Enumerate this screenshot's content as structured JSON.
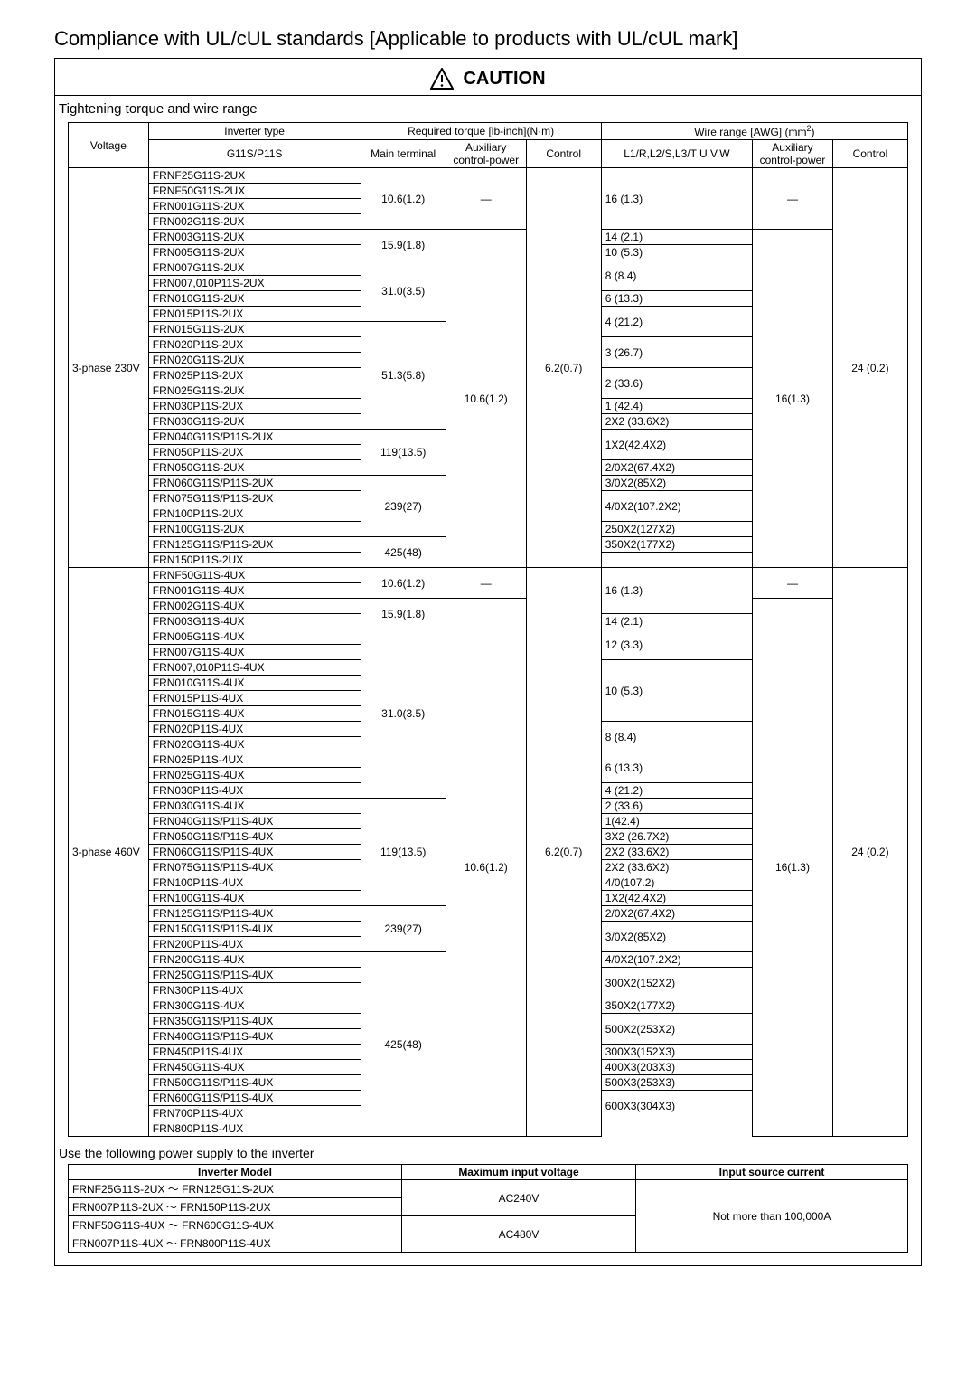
{
  "title": "Compliance with UL/cUL standards [Applicable to products with UL/cUL mark]",
  "caution": "CAUTION",
  "subheading": "Tightening torque and wire range",
  "headers": {
    "voltage": "Voltage",
    "invtype": "Inverter type",
    "g11s": "G11S/P11S",
    "reqtorque": "Required torque [lb-inch](N·m)",
    "wirerange_html": "Wire range [AWG] (mm<sup>2</sup>)",
    "main_term": "Main terminal",
    "aux_power": "Auxiliary control-power",
    "control": "Control",
    "l1r": "L1/R,L2/S,L3/T U,V,W"
  },
  "dash": "—",
  "v230_label": "3-phase 230V",
  "v460_label": "3-phase 460V",
  "torque_t1": "10.6(1.2)",
  "torque_t2": "15.9(1.8)",
  "torque_t3": "31.0(3.5)",
  "torque_t4": "51.3(5.8)",
  "torque_t5": "119(13.5)",
  "torque_t6": "239(27)",
  "torque_t7": "425(48)",
  "aux_power_230": "10.6(1.2)",
  "control_230": "6.2(0.7)",
  "aux_wire_230": "16(1.3)",
  "ctrl_wire_230": "24 (0.2)",
  "aux_power_460": "10.6(1.2)",
  "control_460": "6.2(0.7)",
  "aux_wire_460": "16(1.3)",
  "ctrl_wire_460": "24 (0.2)",
  "r230": [
    [
      "FRNF25G11S-2UX",
      "",
      "16 (1.3)",
      4
    ],
    [
      "FRNF50G11S-2UX",
      "",
      ""
    ],
    [
      "FRN001G11S-2UX",
      "",
      ""
    ],
    [
      "FRN002G11S-2UX",
      "",
      ""
    ],
    [
      "FRN003G11S-2UX",
      "",
      "14 (2.1)",
      1
    ],
    [
      "FRN005G11S-2UX",
      "",
      "10 (5.3)",
      1
    ],
    [
      "FRN007G11S-2UX",
      "",
      "8 (8.4)",
      2
    ],
    [
      "FRN007,010P11S-2UX",
      "",
      ""
    ],
    [
      "FRN010G11S-2UX",
      "",
      "6 (13.3)",
      1
    ],
    [
      "FRN015P11S-2UX",
      "",
      "4 (21.2)",
      2
    ],
    [
      "FRN015G11S-2UX",
      "",
      ""
    ],
    [
      "FRN020P11S-2UX",
      "",
      "3 (26.7)",
      2
    ],
    [
      "FRN020G11S-2UX",
      "",
      ""
    ],
    [
      "FRN025P11S-2UX",
      "",
      "2 (33.6)",
      2
    ],
    [
      "FRN025G11S-2UX",
      "",
      ""
    ],
    [
      "FRN030P11S-2UX",
      "",
      "1 (42.4)",
      1
    ],
    [
      "FRN030G11S-2UX",
      "",
      "2X2 (33.6X2)",
      1
    ],
    [
      "FRN040G11S/P11S-2UX",
      "",
      "1X2(42.4X2)",
      2
    ],
    [
      "FRN050P11S-2UX",
      "",
      ""
    ],
    [
      "FRN050G11S-2UX",
      "",
      "2/0X2(67.4X2)",
      1
    ],
    [
      "FRN060G11S/P11S-2UX",
      "",
      "3/0X2(85X2)",
      1
    ],
    [
      "FRN075G11S/P11S-2UX",
      "",
      "4/0X2(107.2X2)",
      2
    ],
    [
      "FRN100P11S-2UX",
      "",
      ""
    ],
    [
      "FRN100G11S-2UX",
      "",
      "250X2(127X2)",
      1
    ],
    [
      "FRN125G11S/P11S-2UX",
      "",
      "350X2(177X2)",
      1
    ],
    [
      "FRN150P11S-2UX",
      "",
      "",
      0
    ]
  ],
  "r460": [
    [
      "FRNF50G11S-4UX",
      "",
      "16 (1.3)",
      3
    ],
    [
      "FRN001G11S-4UX",
      "",
      ""
    ],
    [
      "FRN002G11S-4UX",
      "",
      ""
    ],
    [
      "FRN003G11S-4UX",
      "",
      "14 (2.1)",
      1
    ],
    [
      "FRN005G11S-4UX",
      "",
      "12 (3.3)",
      2
    ],
    [
      "FRN007G11S-4UX",
      "",
      ""
    ],
    [
      "FRN007,010P11S-4UX",
      "",
      "10 (5.3)",
      4
    ],
    [
      "FRN010G11S-4UX",
      "",
      ""
    ],
    [
      "FRN015P11S-4UX",
      "",
      ""
    ],
    [
      "FRN015G11S-4UX",
      "",
      ""
    ],
    [
      "FRN020P11S-4UX",
      "",
      "8 (8.4)",
      2
    ],
    [
      "FRN020G11S-4UX",
      "",
      ""
    ],
    [
      "FRN025P11S-4UX",
      "",
      "6 (13.3)",
      2
    ],
    [
      "FRN025G11S-4UX",
      "",
      ""
    ],
    [
      "FRN030P11S-4UX",
      "",
      "4 (21.2)",
      1
    ],
    [
      "FRN030G11S-4UX",
      "",
      "2 (33.6)",
      1
    ],
    [
      "FRN040G11S/P11S-4UX",
      "",
      "1(42.4)",
      1
    ],
    [
      "FRN050G11S/P11S-4UX",
      "",
      "3X2 (26.7X2)",
      1
    ],
    [
      "FRN060G11S/P11S-4UX",
      "",
      "2X2 (33.6X2)",
      1
    ],
    [
      "FRN075G11S/P11S-4UX",
      "",
      "2X2 (33.6X2)",
      1
    ],
    [
      "FRN100P11S-4UX",
      "",
      "4/0(107.2)",
      1
    ],
    [
      "FRN100G11S-4UX",
      "",
      "1X2(42.4X2)",
      1
    ],
    [
      "FRN125G11S/P11S-4UX",
      "",
      "2/0X2(67.4X2)",
      1
    ],
    [
      "FRN150G11S/P11S-4UX",
      "",
      "3/0X2(85X2)",
      2
    ],
    [
      "FRN200P11S-4UX",
      "",
      ""
    ],
    [
      "FRN200G11S-4UX",
      "",
      "4/0X2(107.2X2)",
      1
    ],
    [
      "FRN250G11S/P11S-4UX",
      "",
      "300X2(152X2)",
      2
    ],
    [
      "FRN300P11S-4UX",
      "",
      ""
    ],
    [
      "FRN300G11S-4UX",
      "",
      "350X2(177X2)",
      1
    ],
    [
      "FRN350G11S/P11S-4UX",
      "",
      "500X2(253X2)",
      2
    ],
    [
      "FRN400G11S/P11S-4UX",
      "",
      ""
    ],
    [
      "FRN450P11S-4UX",
      "",
      "300X3(152X3)",
      1
    ],
    [
      "FRN450G11S-4UX",
      "",
      "400X3(203X3)",
      1
    ],
    [
      "FRN500G11S/P11S-4UX",
      "",
      "500X3(253X3)",
      1
    ],
    [
      "FRN600G11S/P11S-4UX",
      "",
      "600X3(304X3)",
      2
    ],
    [
      "FRN700P11S-4UX",
      "",
      ""
    ],
    [
      "FRN800P11S-4UX",
      "",
      "",
      0
    ]
  ],
  "mt230_groups": [
    {
      "t": "10.6(1.2)",
      "n": 4
    },
    {
      "t": "15.9(1.8)",
      "n": 2
    },
    {
      "t": "31.0(3.5)",
      "n": 4
    },
    {
      "t": "51.3(5.8)",
      "n": 7
    },
    {
      "t": "119(13.5)",
      "n": 3
    },
    {
      "t": "239(27)",
      "n": 4
    },
    {
      "t": "425(48)",
      "n": 2
    }
  ],
  "mt460_groups": [
    {
      "t": "10.6(1.2)",
      "n": 2
    },
    {
      "t": "15.9(1.8)",
      "n": 2
    },
    {
      "t": "31.0(3.5)",
      "n": 11
    },
    {
      "t": "119(13.5)",
      "n": 7
    },
    {
      "t": "239(27)",
      "n": 3
    },
    {
      "t": "425(48)",
      "n": 12
    }
  ],
  "note": "Use the following power supply to the inverter",
  "ps": {
    "h_model": "Inverter Model",
    "h_volt": "Maximum input voltage",
    "h_curr": "Input source current",
    "r1a": "FRNF25G11S-2UX ～ FRN125G11S-2UX",
    "r1b": "FRN007P11S-2UX ～ FRN150P11S-2UX",
    "r2a": "FRNF50G11S-4UX ～ FRN600G11S-4UX",
    "r2b": "FRN007P11S-4UX ～ FRN800P11S-4UX",
    "v240": "AC240V",
    "v480": "AC480V",
    "curr": "Not more than 100,000A"
  }
}
